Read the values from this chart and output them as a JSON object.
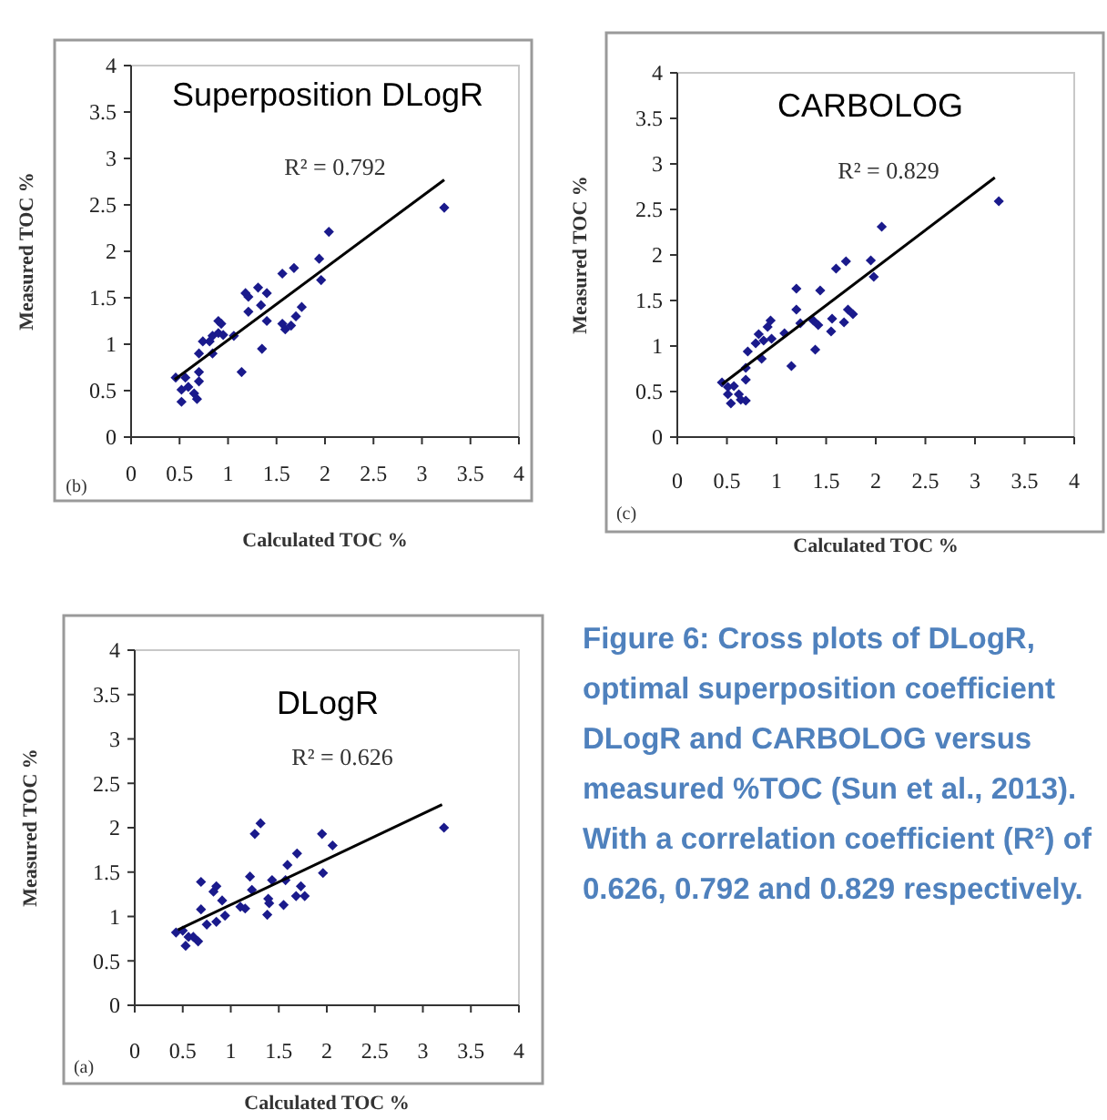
{
  "chart_data": [
    {
      "type": "scatter",
      "title": "Superposition DLogR",
      "xlabel": "Calculated TOC %",
      "ylabel": "Measured TOC %",
      "xlim": [
        0,
        4
      ],
      "ylim": [
        0,
        4
      ],
      "xticks": [
        0,
        0.5,
        1,
        1.5,
        2,
        2.5,
        3,
        3.5,
        4
      ],
      "yticks": [
        0,
        0.5,
        1,
        1.5,
        2,
        2.5,
        3,
        3.5,
        4
      ],
      "annotations": [
        "(b)",
        "R² = 0.792"
      ],
      "series": [
        {
          "type": "scatter",
          "marker": "diamond",
          "color": "#1a1a8c",
          "x": [
            0.46,
            0.52,
            0.52,
            0.56,
            0.59,
            0.65,
            0.68,
            0.7,
            0.7,
            0.7,
            0.74,
            0.81,
            0.84,
            0.84,
            0.9,
            0.9,
            0.93,
            0.95,
            1.06,
            1.14,
            1.18,
            1.21,
            1.21,
            1.31,
            1.34,
            1.35,
            1.4,
            1.4,
            1.56,
            1.56,
            1.59,
            1.65,
            1.68,
            1.7,
            1.76,
            1.94,
            1.96,
            2.04,
            3.23
          ],
          "values": [
            0.64,
            0.51,
            0.38,
            0.64,
            0.54,
            0.47,
            0.41,
            0.6,
            0.7,
            0.9,
            1.03,
            1.03,
            1.09,
            0.9,
            1.12,
            1.25,
            1.22,
            1.1,
            1.09,
            0.7,
            1.55,
            1.35,
            1.51,
            1.61,
            1.42,
            0.95,
            1.55,
            1.25,
            1.76,
            1.22,
            1.16,
            1.2,
            1.82,
            1.3,
            1.4,
            1.92,
            1.69,
            2.21,
            2.47
          ]
        },
        {
          "type": "line",
          "color": "#000000",
          "x": [
            0.45,
            3.23
          ],
          "values": [
            0.62,
            2.77
          ]
        }
      ]
    },
    {
      "type": "scatter",
      "title": "CARBOLOG",
      "xlabel": "Calculated TOC %",
      "ylabel": "Measured TOC %",
      "xlim": [
        0,
        4
      ],
      "ylim": [
        0,
        4
      ],
      "xticks": [
        0,
        0.5,
        1,
        1.5,
        2,
        2.5,
        3,
        3.5,
        4
      ],
      "yticks": [
        0,
        0.5,
        1,
        1.5,
        2,
        2.5,
        3,
        3.5,
        4
      ],
      "annotations": [
        "(c)",
        "R² = 0.829"
      ],
      "series": [
        {
          "type": "scatter",
          "marker": "diamond",
          "color": "#1a1a8c",
          "x": [
            0.45,
            0.51,
            0.54,
            0.51,
            0.57,
            0.62,
            0.64,
            0.69,
            0.69,
            0.69,
            0.71,
            0.79,
            0.82,
            0.85,
            0.87,
            0.91,
            0.94,
            0.95,
            1.08,
            1.15,
            1.2,
            1.2,
            1.24,
            1.37,
            1.39,
            1.42,
            1.44,
            1.6,
            1.56,
            1.55,
            1.68,
            1.7,
            1.72,
            1.77,
            1.95,
            1.98,
            2.06,
            3.24
          ],
          "values": [
            0.6,
            0.55,
            0.37,
            0.47,
            0.56,
            0.47,
            0.41,
            0.4,
            0.63,
            0.76,
            0.94,
            1.03,
            1.13,
            0.86,
            1.06,
            1.21,
            1.28,
            1.08,
            1.14,
            0.78,
            1.63,
            1.4,
            1.25,
            1.28,
            0.96,
            1.23,
            1.61,
            1.85,
            1.3,
            1.16,
            1.26,
            1.93,
            1.4,
            1.35,
            1.94,
            1.76,
            2.31,
            2.59
          ]
        },
        {
          "type": "line",
          "color": "#000000",
          "x": [
            0.45,
            3.2
          ],
          "values": [
            0.58,
            2.85
          ]
        }
      ]
    },
    {
      "type": "scatter",
      "title": "DLogR",
      "xlabel": "Calculated TOC %",
      "ylabel": "Measured TOC %",
      "xlim": [
        0,
        4
      ],
      "ylim": [
        0,
        4
      ],
      "xticks": [
        0,
        0.5,
        1,
        1.5,
        2,
        2.5,
        3,
        3.5,
        4
      ],
      "yticks": [
        0,
        0.5,
        1,
        1.5,
        2,
        2.5,
        3,
        3.5,
        4
      ],
      "annotations": [
        "(a)",
        "R² = 0.626"
      ],
      "series": [
        {
          "type": "scatter",
          "marker": "diamond",
          "color": "#1a1a8c",
          "x": [
            0.43,
            0.5,
            0.53,
            0.56,
            0.61,
            0.66,
            0.69,
            0.69,
            0.75,
            0.82,
            0.85,
            0.85,
            0.91,
            0.94,
            1.1,
            1.15,
            1.2,
            1.22,
            1.25,
            1.31,
            1.38,
            1.39,
            1.4,
            1.43,
            1.55,
            1.57,
            1.59,
            1.68,
            1.69,
            1.73,
            1.77,
            1.95,
            1.96,
            2.06,
            3.22
          ],
          "values": [
            0.82,
            0.84,
            0.67,
            0.77,
            0.77,
            0.72,
            1.39,
            1.08,
            0.91,
            1.28,
            1.34,
            0.94,
            1.18,
            1.01,
            1.11,
            1.09,
            1.45,
            1.3,
            1.93,
            2.05,
            1.02,
            1.2,
            1.15,
            1.41,
            1.13,
            1.41,
            1.58,
            1.23,
            1.71,
            1.34,
            1.23,
            1.93,
            1.49,
            1.8,
            2.0
          ]
        },
        {
          "type": "line",
          "color": "#000000",
          "x": [
            0.45,
            3.2
          ],
          "values": [
            0.85,
            2.26
          ]
        }
      ]
    },
    {
      "type": "other",
      "title": "Figure 6: Cross plots of DLogR, optimal superposition coefficient DLogR and CARBOLOG versus measured %TOC (Sun et al., 2013). With a correlation coefficient (R²) of 0.626, 0.792 and 0.829 respectively."
    }
  ]
}
